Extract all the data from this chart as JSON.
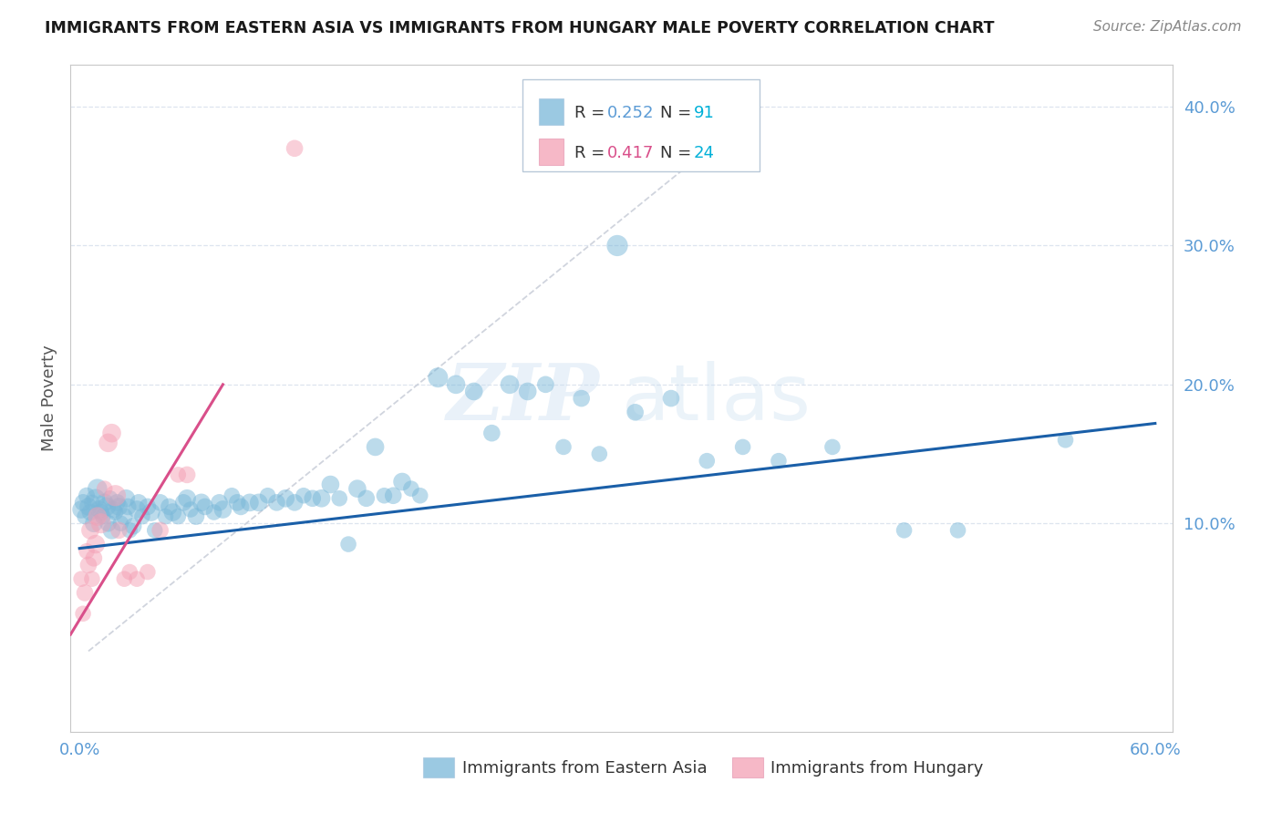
{
  "title": "IMMIGRANTS FROM EASTERN ASIA VS IMMIGRANTS FROM HUNGARY MALE POVERTY CORRELATION CHART",
  "source": "Source: ZipAtlas.com",
  "ylabel": "Male Poverty",
  "xlim": [
    -0.005,
    0.61
  ],
  "ylim": [
    -0.05,
    0.43
  ],
  "yticks": [
    0.1,
    0.2,
    0.3,
    0.4
  ],
  "xtick_left": "0.0%",
  "xtick_right": "60.0%",
  "blue_color": "#7ab8d9",
  "pink_color": "#f4a0b5",
  "trendline_blue": "#1a5fa8",
  "trendline_pink": "#d94f8a",
  "legend_blue_r": "0.252",
  "legend_blue_n": "91",
  "legend_pink_r": "0.417",
  "legend_pink_n": "24",
  "label_blue": "Immigrants from Eastern Asia",
  "label_pink": "Immigrants from Hungary",
  "watermark_zip": "ZIP",
  "watermark_atlas": "atlas",
  "blue_scatter_x": [
    0.001,
    0.002,
    0.003,
    0.004,
    0.005,
    0.006,
    0.007,
    0.008,
    0.009,
    0.01,
    0.011,
    0.012,
    0.013,
    0.014,
    0.015,
    0.016,
    0.017,
    0.018,
    0.019,
    0.02,
    0.021,
    0.022,
    0.023,
    0.025,
    0.026,
    0.027,
    0.028,
    0.03,
    0.032,
    0.033,
    0.035,
    0.038,
    0.04,
    0.042,
    0.045,
    0.048,
    0.05,
    0.052,
    0.055,
    0.058,
    0.06,
    0.062,
    0.065,
    0.068,
    0.07,
    0.075,
    0.078,
    0.08,
    0.085,
    0.088,
    0.09,
    0.095,
    0.1,
    0.105,
    0.11,
    0.115,
    0.12,
    0.125,
    0.13,
    0.135,
    0.14,
    0.145,
    0.15,
    0.155,
    0.16,
    0.165,
    0.17,
    0.175,
    0.18,
    0.185,
    0.19,
    0.2,
    0.21,
    0.22,
    0.23,
    0.24,
    0.25,
    0.26,
    0.27,
    0.28,
    0.29,
    0.3,
    0.31,
    0.33,
    0.35,
    0.37,
    0.39,
    0.42,
    0.46,
    0.49,
    0.55
  ],
  "blue_scatter_y": [
    0.11,
    0.115,
    0.105,
    0.12,
    0.112,
    0.108,
    0.115,
    0.1,
    0.118,
    0.125,
    0.11,
    0.108,
    0.105,
    0.115,
    0.112,
    0.1,
    0.118,
    0.095,
    0.11,
    0.108,
    0.115,
    0.112,
    0.1,
    0.105,
    0.118,
    0.112,
    0.095,
    0.098,
    0.11,
    0.115,
    0.105,
    0.112,
    0.108,
    0.095,
    0.115,
    0.105,
    0.112,
    0.108,
    0.105,
    0.115,
    0.118,
    0.11,
    0.105,
    0.115,
    0.112,
    0.108,
    0.115,
    0.11,
    0.12,
    0.115,
    0.112,
    0.115,
    0.115,
    0.12,
    0.115,
    0.118,
    0.115,
    0.12,
    0.118,
    0.118,
    0.128,
    0.118,
    0.085,
    0.125,
    0.118,
    0.155,
    0.12,
    0.12,
    0.13,
    0.125,
    0.12,
    0.205,
    0.2,
    0.195,
    0.165,
    0.2,
    0.195,
    0.2,
    0.155,
    0.19,
    0.15,
    0.3,
    0.18,
    0.19,
    0.145,
    0.155,
    0.145,
    0.155,
    0.095,
    0.095,
    0.16
  ],
  "blue_scatter_size": [
    200,
    180,
    160,
    170,
    200,
    180,
    160,
    200,
    220,
    240,
    200,
    180,
    160,
    200,
    220,
    180,
    160,
    200,
    180,
    160,
    180,
    200,
    160,
    180,
    200,
    180,
    160,
    180,
    200,
    180,
    160,
    180,
    200,
    160,
    180,
    160,
    180,
    200,
    160,
    180,
    200,
    160,
    180,
    200,
    180,
    160,
    180,
    200,
    160,
    180,
    180,
    200,
    200,
    160,
    180,
    200,
    180,
    160,
    180,
    200,
    200,
    160,
    160,
    200,
    180,
    200,
    160,
    180,
    200,
    160,
    160,
    250,
    220,
    200,
    180,
    220,
    200,
    180,
    160,
    180,
    160,
    280,
    180,
    180,
    160,
    160,
    160,
    160,
    160,
    160,
    160
  ],
  "pink_scatter_x": [
    0.001,
    0.002,
    0.003,
    0.004,
    0.005,
    0.006,
    0.007,
    0.008,
    0.009,
    0.01,
    0.012,
    0.014,
    0.016,
    0.018,
    0.02,
    0.022,
    0.025,
    0.028,
    0.032,
    0.038,
    0.045,
    0.055,
    0.06,
    0.12
  ],
  "pink_scatter_y": [
    0.06,
    0.035,
    0.05,
    0.08,
    0.07,
    0.095,
    0.06,
    0.075,
    0.085,
    0.105,
    0.1,
    0.125,
    0.158,
    0.165,
    0.12,
    0.095,
    0.06,
    0.065,
    0.06,
    0.065,
    0.095,
    0.135,
    0.135,
    0.37
  ],
  "pink_scatter_size": [
    160,
    160,
    180,
    160,
    180,
    200,
    160,
    180,
    220,
    220,
    250,
    160,
    220,
    220,
    280,
    180,
    160,
    160,
    160,
    160,
    180,
    160,
    180,
    180
  ],
  "blue_trend_x": [
    0.0,
    0.6
  ],
  "blue_trend_y": [
    0.082,
    0.172
  ],
  "pink_trend_x": [
    -0.005,
    0.08
  ],
  "pink_trend_y": [
    0.02,
    0.2
  ],
  "gray_trend_x": [
    0.005,
    0.38
  ],
  "gray_trend_y": [
    0.008,
    0.4
  ],
  "background_color": "#ffffff",
  "grid_color": "#dde4ef",
  "axis_color": "#c8c8c8",
  "tick_color": "#5b9bd5",
  "text_color_r": "#444444",
  "blue_r_color": "#5b9bd5",
  "pink_r_color": "#d94f8a",
  "n_color": "#00b0d8"
}
